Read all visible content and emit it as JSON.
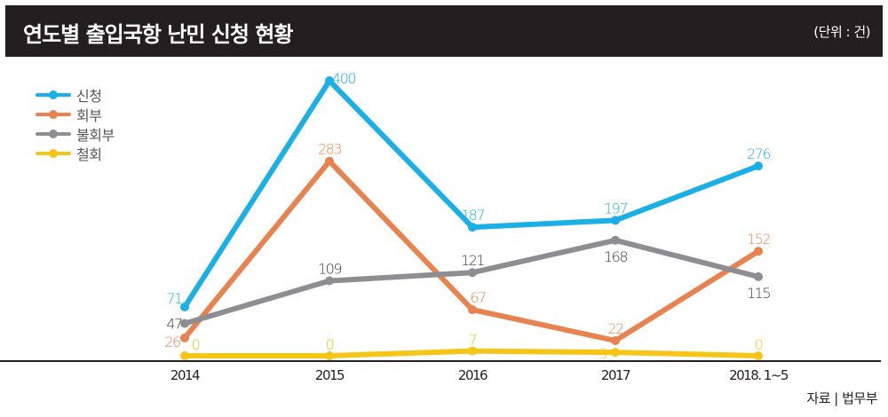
{
  "header": {
    "title": "연도별 출입국항 난민 신청 현황",
    "unit": "(단위 : 건)"
  },
  "source": "자료 | 법무부",
  "chart_data": {
    "type": "line",
    "title": "연도별 출입국항 난민 신청 현황",
    "unit": "(단위 : 건)",
    "xlabel": "",
    "ylabel": "",
    "categories": [
      "2014",
      "2015",
      "2016",
      "2017",
      "2018. 1~5"
    ],
    "ylim": [
      0,
      400
    ],
    "grid": false,
    "legend_position": "top-left",
    "series": [
      {
        "name": "신청",
        "color": "#1ab0e6",
        "values": [
          71,
          400,
          187,
          197,
          276
        ],
        "labels": [
          "71",
          "400",
          "187",
          "197",
          "276"
        ]
      },
      {
        "name": "회부",
        "color": "#e8834f",
        "values": [
          26,
          283,
          67,
          22,
          152
        ],
        "labels": [
          "26",
          "283",
          "67",
          "22",
          "152"
        ]
      },
      {
        "name": "불회부",
        "color": "#8e8d92",
        "values": [
          47,
          109,
          121,
          168,
          115
        ],
        "labels": [
          "47",
          "109",
          "121",
          "168",
          "115"
        ]
      },
      {
        "name": "철회",
        "color": "#f5c518",
        "values": [
          0,
          0,
          7,
          5,
          0
        ],
        "labels": [
          "0",
          "0",
          "7",
          "5",
          "0"
        ]
      }
    ]
  }
}
